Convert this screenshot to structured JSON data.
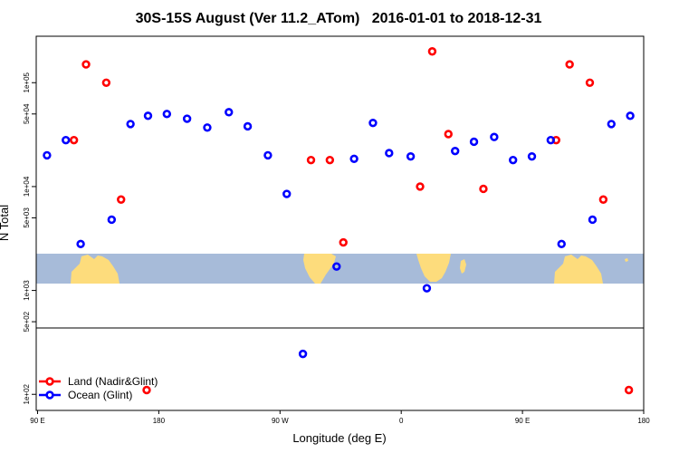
{
  "chart_data": {
    "type": "scatter",
    "title": "30S-15S August (Ver 11.2_ATom)   2016-01-01 to 2018-12-31",
    "xlabel": "Longitude (deg E)",
    "ylabel": "N Total",
    "y_scale": "log",
    "ylim": [
      70,
      280000
    ],
    "x_ticks": [
      {
        "value": 90,
        "label": "90 E"
      },
      {
        "value": 180,
        "label": "180"
      },
      {
        "value": 270,
        "label": "90 W"
      },
      {
        "value": 360,
        "label": "0"
      },
      {
        "value": 450,
        "label": "90 E"
      },
      {
        "value": 540,
        "label": "180"
      }
    ],
    "y_ticks": [
      {
        "value": 100,
        "label": "1e+02"
      },
      {
        "value": 500,
        "label": "5e+02"
      },
      {
        "value": 1000,
        "label": "1e+03"
      },
      {
        "value": 5000,
        "label": "5e+03"
      },
      {
        "value": 10000,
        "label": "1e+04"
      },
      {
        "value": 50000,
        "label": "5e+04"
      },
      {
        "value": 100000,
        "label": "1e+05"
      }
    ],
    "series": [
      {
        "name": "Land (Nadir&Glint)",
        "color": "#ff0000",
        "points": [
          {
            "x": 117,
            "y": 28000
          },
          {
            "x": 126,
            "y": 150000
          },
          {
            "x": 141,
            "y": 100000
          },
          {
            "x": 152,
            "y": 7500
          },
          {
            "x": 171,
            "y": 110
          },
          {
            "x": 293,
            "y": 18000
          },
          {
            "x": 307,
            "y": 18000
          },
          {
            "x": 317,
            "y": 2900
          },
          {
            "x": 374,
            "y": 10000
          },
          {
            "x": 383,
            "y": 200000
          },
          {
            "x": 395,
            "y": 32000
          },
          {
            "x": 421,
            "y": 9500
          },
          {
            "x": 475,
            "y": 28000
          },
          {
            "x": 485,
            "y": 150000
          },
          {
            "x": 500,
            "y": 100000
          },
          {
            "x": 510,
            "y": 7500
          },
          {
            "x": 529,
            "y": 110
          }
        ]
      },
      {
        "name": "Ocean (Glint)",
        "color": "#0000ff",
        "points": [
          {
            "x": 97,
            "y": 20000
          },
          {
            "x": 111,
            "y": 28000
          },
          {
            "x": 122,
            "y": 2800
          },
          {
            "x": 145,
            "y": 4800
          },
          {
            "x": 159,
            "y": 40000
          },
          {
            "x": 172,
            "y": 48000
          },
          {
            "x": 186,
            "y": 50000
          },
          {
            "x": 201,
            "y": 45000
          },
          {
            "x": 216,
            "y": 37000
          },
          {
            "x": 232,
            "y": 52000
          },
          {
            "x": 246,
            "y": 38000
          },
          {
            "x": 261,
            "y": 20000
          },
          {
            "x": 275,
            "y": 8500
          },
          {
            "x": 287,
            "y": 245
          },
          {
            "x": 312,
            "y": 1700
          },
          {
            "x": 325,
            "y": 18500
          },
          {
            "x": 339,
            "y": 41000
          },
          {
            "x": 351,
            "y": 21000
          },
          {
            "x": 367,
            "y": 19500
          },
          {
            "x": 379,
            "y": 1050
          },
          {
            "x": 400,
            "y": 22000
          },
          {
            "x": 414,
            "y": 27000
          },
          {
            "x": 429,
            "y": 30000
          },
          {
            "x": 443,
            "y": 18000
          },
          {
            "x": 457,
            "y": 19500
          },
          {
            "x": 471,
            "y": 28000
          },
          {
            "x": 479,
            "y": 2800
          },
          {
            "x": 502,
            "y": 4800
          },
          {
            "x": 516,
            "y": 40000
          },
          {
            "x": 530,
            "y": 48000
          }
        ]
      }
    ],
    "legend": {
      "position": "bottom-left"
    },
    "grid": false,
    "colors": {
      "map_ocean": "#a7bbd9",
      "map_land": "#fddc7c",
      "land_series": "#ff0000",
      "ocean_series": "#0000ff"
    }
  }
}
